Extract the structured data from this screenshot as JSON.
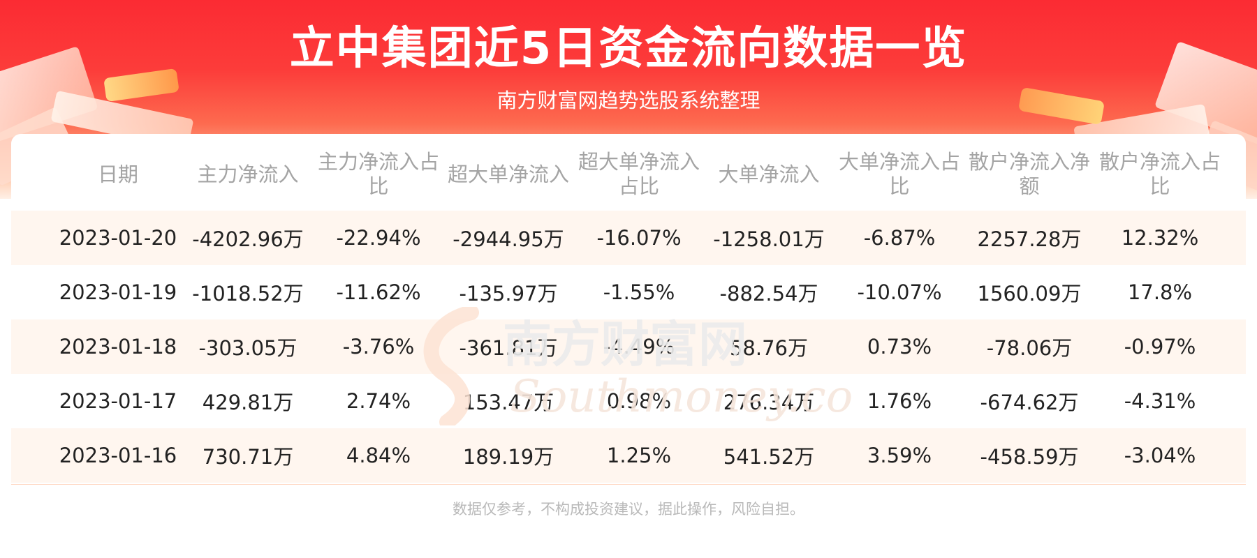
{
  "header": {
    "title": "立中集团近5日资金流向数据一览",
    "subtitle": "南方财富网趋势选股系统整理"
  },
  "watermark": {
    "text_cn": "南方财富网",
    "text_en": "Southmoney.com"
  },
  "table": {
    "columns": [
      "日期",
      "主力净流入",
      "主力净流入占比",
      "超大单净流入",
      "超大单净流入占比",
      "大单净流入",
      "大单净流入占比",
      "散户净流入净额",
      "散户净流入占比"
    ],
    "rows": [
      [
        "2023-01-20",
        "-4202.96万",
        "-22.94%",
        "-2944.95万",
        "-16.07%",
        "-1258.01万",
        "-6.87%",
        "2257.28万",
        "12.32%"
      ],
      [
        "2023-01-19",
        "-1018.52万",
        "-11.62%",
        "-135.97万",
        "-1.55%",
        "-882.54万",
        "-10.07%",
        "1560.09万",
        "17.8%"
      ],
      [
        "2023-01-18",
        "-303.05万",
        "-3.76%",
        "-361.81万",
        "-4.49%",
        "58.76万",
        "0.73%",
        "-78.06万",
        "-0.97%"
      ],
      [
        "2023-01-17",
        "429.81万",
        "2.74%",
        "153.47万",
        "0.98%",
        "276.34万",
        "1.76%",
        "-674.62万",
        "-4.31%"
      ],
      [
        "2023-01-16",
        "730.71万",
        "4.84%",
        "189.19万",
        "1.25%",
        "541.52万",
        "3.59%",
        "-458.59万",
        "-3.04%"
      ]
    ]
  },
  "footer": {
    "disclaimer": "数据仅参考，不构成投资建议，据此操作，风险自担。"
  },
  "colors": {
    "banner_red": "#fb2b33",
    "alt_row": "#fff6ef",
    "header_text": "#a4a4a4",
    "cell_text": "#222222"
  }
}
